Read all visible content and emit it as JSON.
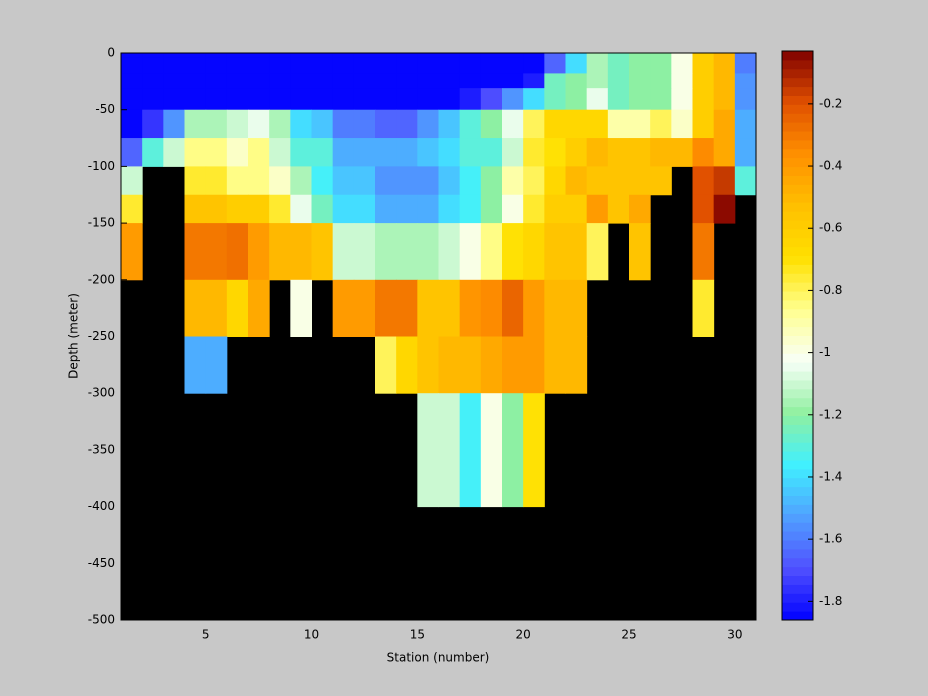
{
  "chart_data": {
    "type": "heatmap",
    "xlabel": "Station (number)",
    "ylabel": "Depth (meter)",
    "x_edges": [
      1,
      2,
      3,
      4,
      5,
      6,
      7,
      8,
      9,
      10,
      11,
      12,
      13,
      14,
      15,
      16,
      17,
      18,
      19,
      20,
      21,
      22,
      23,
      24,
      25,
      26,
      27,
      28,
      29,
      30,
      31
    ],
    "y_edges": [
      0,
      -4,
      -18,
      -31,
      -50,
      -75,
      -100,
      -125,
      -150,
      -200,
      -250,
      -300,
      -400,
      -500
    ],
    "values": [
      [
        -1.85,
        -1.85,
        -1.85,
        -1.85,
        -1.85,
        -1.85,
        -1.85,
        -1.85,
        -1.85,
        -1.85,
        -1.85,
        -1.85,
        -1.85,
        -1.85,
        -1.85,
        -1.85,
        -1.85,
        -1.85,
        -1.85,
        -1.85,
        -1.65,
        -1.4,
        -1.15,
        -1.25,
        -1.2,
        -1.2,
        -1.0,
        -0.6,
        -0.5,
        -1.6
      ],
      [
        -1.85,
        -1.85,
        -1.85,
        -1.85,
        -1.85,
        -1.85,
        -1.85,
        -1.85,
        -1.85,
        -1.85,
        -1.85,
        -1.85,
        -1.85,
        -1.85,
        -1.85,
        -1.85,
        -1.85,
        -1.85,
        -1.85,
        -1.85,
        -1.65,
        -1.4,
        -1.15,
        -1.25,
        -1.2,
        -1.2,
        -1.0,
        -0.6,
        -0.5,
        -1.6
      ],
      [
        -1.85,
        -1.85,
        -1.85,
        -1.85,
        -1.85,
        -1.85,
        -1.85,
        -1.85,
        -1.85,
        -1.85,
        -1.85,
        -1.85,
        -1.85,
        -1.85,
        -1.85,
        -1.85,
        -1.85,
        -1.85,
        -1.85,
        -1.8,
        -1.25,
        -1.2,
        -1.15,
        -1.25,
        -1.2,
        -1.2,
        -1.0,
        -0.6,
        -0.5,
        -1.55
      ],
      [
        -1.85,
        -1.85,
        -1.85,
        -1.85,
        -1.85,
        -1.85,
        -1.85,
        -1.85,
        -1.85,
        -1.85,
        -1.85,
        -1.85,
        -1.85,
        -1.85,
        -1.85,
        -1.85,
        -1.8,
        -1.7,
        -1.55,
        -1.4,
        -1.25,
        -1.2,
        -1.05,
        -1.25,
        -1.2,
        -1.2,
        -1.0,
        -0.6,
        -0.5,
        -1.55
      ],
      [
        -1.85,
        -1.75,
        -1.55,
        -1.15,
        -1.15,
        -1.1,
        -1.05,
        -1.15,
        -1.4,
        -1.45,
        -1.6,
        -1.6,
        -1.65,
        -1.65,
        -1.55,
        -1.45,
        -1.3,
        -1.2,
        -1.05,
        -0.8,
        -0.65,
        -0.65,
        -0.65,
        -0.9,
        -0.9,
        -0.8,
        -0.95,
        -0.6,
        -0.45,
        -1.5
      ],
      [
        -1.65,
        -1.3,
        -1.1,
        -0.85,
        -0.85,
        -0.95,
        -0.85,
        -1.1,
        -1.3,
        -1.3,
        -1.5,
        -1.5,
        -1.5,
        -1.5,
        -1.45,
        -1.4,
        -1.3,
        -1.3,
        -1.1,
        -0.75,
        -0.7,
        -0.6,
        -0.5,
        -0.55,
        -0.55,
        -0.5,
        -0.5,
        -0.35,
        -0.45,
        -1.5
      ],
      [
        -1.1,
        null,
        null,
        -0.75,
        -0.75,
        -0.85,
        -0.85,
        -0.95,
        -1.15,
        -1.35,
        -1.45,
        -1.45,
        -1.55,
        -1.55,
        -1.55,
        -1.45,
        -1.35,
        -1.2,
        -0.9,
        -0.8,
        -0.65,
        -0.5,
        -0.55,
        -0.55,
        -0.55,
        -0.55,
        null,
        -0.2,
        -0.15,
        -1.3
      ],
      [
        -0.75,
        null,
        null,
        -0.55,
        -0.55,
        -0.6,
        -0.6,
        -0.75,
        -1.05,
        -1.25,
        -1.4,
        -1.4,
        -1.5,
        -1.5,
        -1.5,
        -1.4,
        -1.35,
        -1.2,
        -1.0,
        -0.75,
        -0.6,
        -0.6,
        -0.4,
        -0.55,
        -0.45,
        null,
        null,
        -0.2,
        -0.05,
        null
      ],
      [
        -0.4,
        null,
        null,
        -0.3,
        -0.3,
        -0.28,
        -0.4,
        -0.5,
        -0.5,
        -0.55,
        -1.1,
        -1.1,
        -1.15,
        -1.15,
        -1.15,
        -1.1,
        -1.0,
        -0.85,
        -0.7,
        -0.65,
        -0.55,
        -0.55,
        -0.8,
        null,
        -0.55,
        null,
        null,
        -0.3,
        null,
        null
      ],
      [
        null,
        null,
        null,
        -0.5,
        -0.5,
        -0.65,
        -0.45,
        null,
        -1.0,
        null,
        -0.4,
        -0.4,
        -0.3,
        -0.3,
        -0.55,
        -0.55,
        -0.38,
        -0.35,
        -0.25,
        -0.4,
        -0.5,
        -0.5,
        null,
        null,
        null,
        null,
        null,
        -0.75,
        null,
        null
      ],
      [
        null,
        null,
        null,
        -1.5,
        -1.5,
        null,
        null,
        null,
        null,
        null,
        null,
        null,
        -0.8,
        -0.65,
        -0.55,
        -0.5,
        -0.5,
        -0.45,
        -0.4,
        -0.4,
        -0.5,
        -0.5,
        null,
        null,
        null,
        null,
        null,
        null,
        null,
        null
      ],
      [
        null,
        null,
        null,
        null,
        null,
        null,
        null,
        null,
        null,
        null,
        null,
        null,
        null,
        null,
        -1.1,
        -1.1,
        -1.35,
        -1.0,
        -1.2,
        -0.7,
        null,
        null,
        null,
        null,
        null,
        null,
        null,
        null,
        null,
        null
      ],
      [
        null,
        null,
        null,
        null,
        null,
        null,
        null,
        null,
        null,
        null,
        null,
        null,
        null,
        null,
        null,
        null,
        null,
        null,
        null,
        null,
        null,
        null,
        null,
        null,
        null,
        null,
        null,
        null,
        null,
        null
      ]
    ],
    "xlim": [
      1,
      31
    ],
    "ylim": [
      -500,
      0
    ],
    "xticks": [
      5,
      10,
      15,
      20,
      25,
      30
    ],
    "yticks": [
      0,
      -50,
      -100,
      -150,
      -200,
      -250,
      -300,
      -350,
      -400,
      -450,
      -500
    ],
    "clim": [
      -1.86,
      -0.03
    ],
    "cticks": [
      -0.2,
      -0.4,
      -0.6,
      -0.8,
      -1,
      -1.2,
      -1.4,
      -1.6,
      -1.8
    ],
    "colormap": [
      "#0000ff",
      "#5050ff",
      "#50a0ff",
      "#40f0ff",
      "#90f0a0",
      "#f8fff8",
      "#ffff90",
      "#ffe000",
      "#ffc000",
      "#ff9000",
      "#e05000",
      "#800000"
    ],
    "nan_color": "#000000"
  }
}
